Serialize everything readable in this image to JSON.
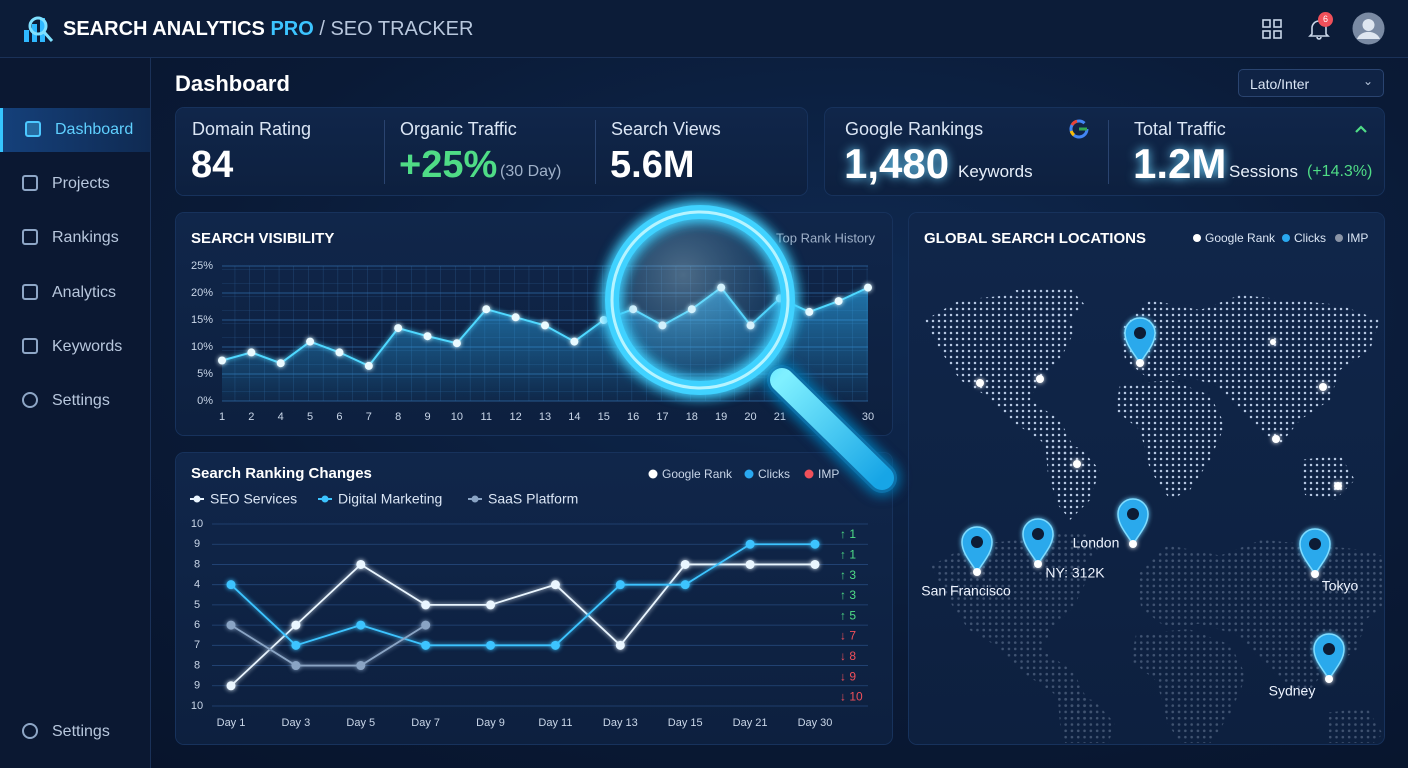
{
  "header": {
    "brand": "SEARCH ANALYTICS",
    "brand_accent": "PRO",
    "subtitle": "/ SEO TRACKER",
    "notifications": "6"
  },
  "sidebar": {
    "items": [
      "Dashboard",
      "Projects",
      "Rankings",
      "Analytics",
      "Keywords",
      "Settings"
    ],
    "footer": "Settings"
  },
  "page": {
    "title": "Dashboard",
    "font_select": "Lato/Inter"
  },
  "kpis": [
    {
      "label": "Domain Rating",
      "value": "84"
    },
    {
      "label": "Organic Traffic",
      "value": "+25%",
      "note": "(30 Day)"
    },
    {
      "label": "Search Views",
      "value": "5.6M"
    },
    {
      "label": "Google Rankings",
      "value": "1,480",
      "note": "Keywords"
    },
    {
      "label": "Total Traffic",
      "value": "1.2M",
      "note": "Sessions",
      "change": "(+14.3%)"
    }
  ],
  "visibility_chart": {
    "type": "line",
    "title": "SEARCH VISIBILITY",
    "subtitle": "Top Rank History",
    "categories": [
      "1",
      "2",
      "4",
      "5",
      "6",
      "7",
      "8",
      "9",
      "10",
      "11",
      "12",
      "13",
      "14",
      "15",
      "16",
      "17",
      "18",
      "19",
      "20",
      "21",
      null,
      null,
      "30"
    ],
    "values": [
      7.5,
      9,
      7,
      11,
      9,
      6.5,
      13.5,
      12,
      10.7,
      17,
      15.5,
      14,
      11,
      15,
      17,
      14,
      17,
      21,
      14,
      19,
      16.5,
      18.5,
      21
    ],
    "color": "#4fd8ff",
    "ylim": [
      0,
      25
    ],
    "yticks": [
      {
        "value": 0,
        "label": "0%"
      },
      {
        "value": 5,
        "label": "5%"
      },
      {
        "value": 10,
        "label": "10%"
      },
      {
        "value": 15,
        "label": "15%"
      },
      {
        "value": 20,
        "label": "20%"
      },
      {
        "value": 25,
        "label": "25%"
      }
    ],
    "grid": true
  },
  "ranking_chart": {
    "type": "line",
    "title": "Search Ranking Changes",
    "legend_top": [
      {
        "name": "Google Rank",
        "color": "#ffffff"
      },
      {
        "name": "Clicks",
        "color": "#29a8f0"
      },
      {
        "name": "IMP",
        "color": "#f0505a"
      }
    ],
    "categories": [
      "Day 1",
      "Day 3",
      "Day 5",
      "Day 7",
      "Day 9",
      "Day 11",
      "Day 13",
      "Day 15",
      "Day 21",
      "Day 30"
    ],
    "series": [
      {
        "name": "SEO Services",
        "color": "#eaf6ff",
        "values": [
          1,
          4,
          7,
          5,
          5,
          6,
          3,
          7,
          7,
          7
        ]
      },
      {
        "name": "Digital Marketing",
        "color": "#3cc4ff",
        "values": [
          6,
          3,
          4,
          3,
          3,
          3,
          6,
          6,
          8,
          8
        ]
      },
      {
        "name": "SaaS Platform",
        "color": "#8aa4c4",
        "values": [
          4,
          2,
          2,
          4,
          null,
          null,
          null,
          null,
          null,
          null
        ]
      }
    ],
    "ylim": [
      0,
      9
    ],
    "yticks": [
      {
        "value": 9,
        "label": "10"
      },
      {
        "value": 8,
        "label": "9"
      },
      {
        "value": 7,
        "label": "8"
      },
      {
        "value": 6,
        "label": "4"
      },
      {
        "value": 5,
        "label": "5"
      },
      {
        "value": 4,
        "label": "6"
      },
      {
        "value": 3,
        "label": "7"
      },
      {
        "value": 2,
        "label": "8"
      },
      {
        "value": 1,
        "label": "9"
      },
      {
        "value": 0,
        "label": "10"
      }
    ],
    "changes": [
      "↑ 1",
      "↑ 1",
      "↑ 3",
      "↑ 3",
      "↑ 5",
      "↓ 7",
      "↓ 8",
      "↓ 9",
      "↓ 10"
    ],
    "grid": true
  },
  "map": {
    "title": "GLOBAL SEARCH LOCATIONS",
    "legend": [
      {
        "name": "Google Rank",
        "color": "#ffffff"
      },
      {
        "name": "Clicks",
        "color": "#29a8f0"
      },
      {
        "name": "IMP",
        "color": "#8a94a6"
      }
    ],
    "locations": [
      "San Francisco",
      "NY: 312K",
      "London",
      "Tokyo",
      "Sydney"
    ]
  }
}
